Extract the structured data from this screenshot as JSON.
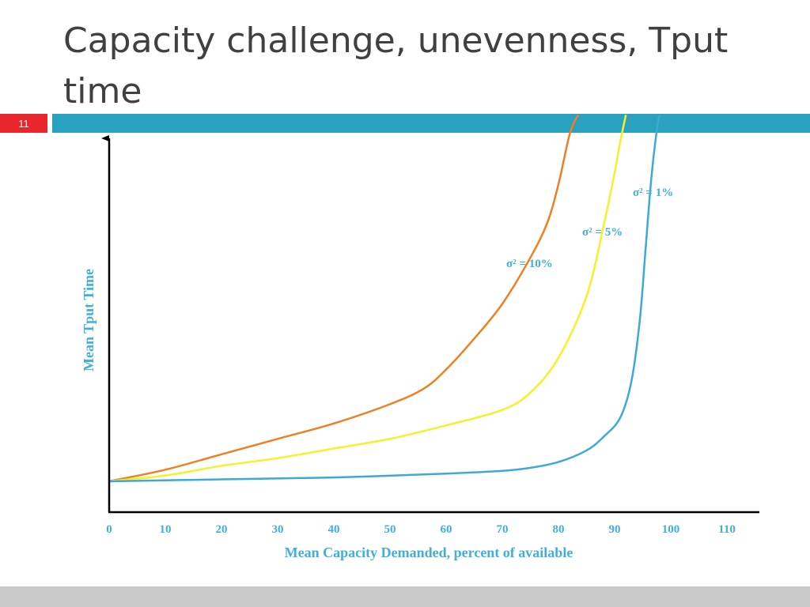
{
  "slide": {
    "title": "Capacity challenge, unevenness, Tput time",
    "number": "11"
  },
  "colors": {
    "header_bar": "#2aa1be",
    "slide_number_bg": "#e8262b",
    "label_blue": "#3fb0dc"
  },
  "chart_data": {
    "type": "line",
    "title": "",
    "xlabel": "Mean Capacity Demanded, percent of available",
    "ylabel": "Mean Tput Time",
    "x_ticks": [
      "0",
      "10",
      "20",
      "30",
      "40",
      "50",
      "60",
      "70",
      "80",
      "90",
      "100",
      "110"
    ],
    "xlim": [
      0,
      115
    ],
    "y_ticks": [],
    "ylim": [
      0,
      100
    ],
    "grid": false,
    "legend": "none",
    "series": [
      {
        "name": "σ² = 10%",
        "color": "#f07f22",
        "x": [
          0,
          10,
          20,
          30,
          40,
          50,
          56,
          60,
          65,
          70,
          75,
          78,
          80,
          82,
          83.5
        ],
        "y": [
          8,
          11,
          15,
          19,
          23,
          28,
          32,
          37,
          45,
          54,
          66,
          75,
          85,
          98,
          103
        ]
      },
      {
        "name": "σ² = 5%",
        "color": "#f2f22a",
        "x": [
          0,
          10,
          20,
          30,
          40,
          50,
          60,
          70,
          75,
          80,
          85,
          88,
          90,
          91,
          92
        ],
        "y": [
          8,
          9.5,
          12,
          14,
          16.5,
          19,
          22.5,
          26.5,
          31,
          40,
          56,
          74,
          88,
          96,
          103
        ]
      },
      {
        "name": "σ² = 1%",
        "color": "#3fa9d6",
        "x": [
          0,
          20,
          40,
          60,
          70,
          75,
          80,
          85,
          88,
          91,
          93,
          94.5,
          95.5,
          96.5,
          97.5,
          98
        ],
        "y": [
          8,
          8.5,
          9,
          10,
          10.7,
          11.5,
          13,
          16,
          19.5,
          24.5,
          34,
          50,
          68,
          86,
          99,
          103
        ]
      }
    ]
  }
}
